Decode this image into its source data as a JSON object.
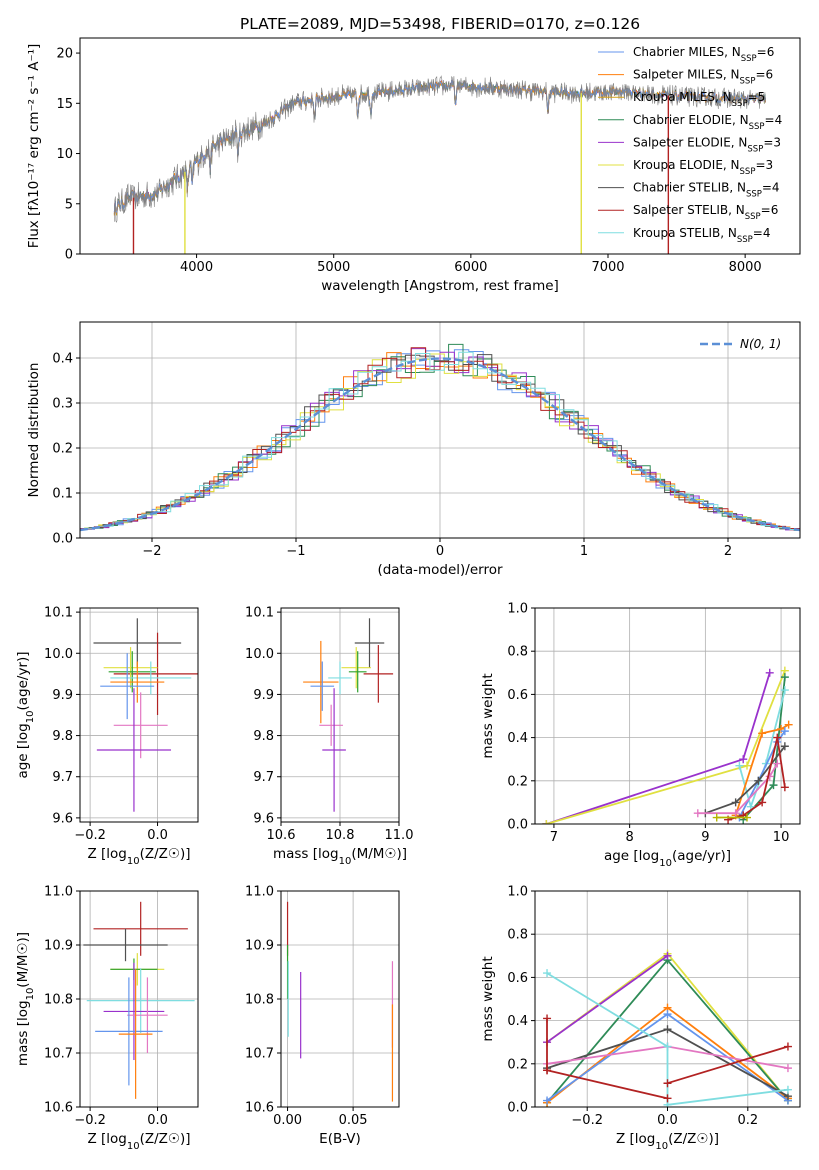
{
  "colors": {
    "Chabrier MILES": "#6495ed",
    "Salpeter MILES": "#ff7f0e",
    "Kroupa MILES": "#b0b0b0",
    "Chabrier ELODIE": "#2ca02c",
    "Salpeter ELODIE": "#9932cc",
    "Kroupa ELODIE": "#e0e040",
    "Chabrier STELIB": "#505050",
    "Salpeter STELIB": "#b22222",
    "Kroupa STELIB": "#7fdde0",
    "pink": "#e377c2",
    "gaussian": "#5b8fd6"
  },
  "chart_data": [
    {
      "id": "spectrum",
      "type": "line",
      "title": "PLATE=2089, MJD=53498, FIBERID=0170, z=0.126",
      "xlabel": "wavelength [Angstrom, rest frame]",
      "ylabel": "Flux [fλ10⁻¹⁷ erg cm⁻² s⁻¹ A⁻¹]",
      "xlim": [
        3150,
        8400
      ],
      "ylim": [
        0,
        21.5
      ],
      "xticks": [
        4000,
        5000,
        6000,
        7000,
        8000
      ],
      "yticks": [
        0,
        5,
        10,
        15,
        20
      ],
      "legend_loc": "upper right",
      "legend": [
        {
          "label": "Chabrier MILES, N",
          "sub": "SSP",
          "tail": "=6",
          "color": "#6495ed"
        },
        {
          "label": "Salpeter MILES, N",
          "sub": "SSP",
          "tail": "=6",
          "color": "#ff7f0e"
        },
        {
          "label": "Kroupa MILES, N",
          "sub": "SSP",
          "tail": "=5",
          "color": "#d4a017"
        },
        {
          "label": "Chabrier ELODIE, N",
          "sub": "SSP",
          "tail": "=4",
          "color": "#2e8b57"
        },
        {
          "label": "Salpeter ELODIE, N",
          "sub": "SSP",
          "tail": "=3",
          "color": "#9932cc"
        },
        {
          "label": "Kroupa ELODIE, N",
          "sub": "SSP",
          "tail": "=3",
          "color": "#e0e040"
        },
        {
          "label": "Chabrier STELIB, N",
          "sub": "SSP",
          "tail": "=4",
          "color": "#505050"
        },
        {
          "label": "Salpeter STELIB, N",
          "sub": "SSP",
          "tail": "=6",
          "color": "#b22222"
        },
        {
          "label": "Kroupa STELIB, N",
          "sub": "SSP",
          "tail": "=4",
          "color": "#7fdde0"
        }
      ],
      "continuum": [
        [
          3400,
          4.5
        ],
        [
          3500,
          5.5
        ],
        [
          3700,
          6.0
        ],
        [
          3900,
          8.0
        ],
        [
          4100,
          10.5
        ],
        [
          4300,
          12.0
        ],
        [
          4500,
          13.0
        ],
        [
          4700,
          15.0
        ],
        [
          4900,
          15.5
        ],
        [
          5100,
          15.8
        ],
        [
          5300,
          16.0
        ],
        [
          5600,
          16.5
        ],
        [
          5900,
          16.8
        ],
        [
          6200,
          16.5
        ],
        [
          6500,
          16.2
        ],
        [
          6800,
          16.0
        ],
        [
          7100,
          16.2
        ],
        [
          7400,
          15.8
        ],
        [
          7700,
          15.6
        ],
        [
          8000,
          15.4
        ],
        [
          8150,
          15.4
        ]
      ],
      "dropouts": [
        {
          "x": 3540,
          "color": "#b22222"
        },
        {
          "x": 3915,
          "color": "#e0e040"
        },
        {
          "x": 6805,
          "color": "#e0e040"
        },
        {
          "x": 7440,
          "color": "#b22222"
        }
      ]
    },
    {
      "id": "residuals",
      "type": "histogram",
      "xlabel": "(data-model)/error",
      "ylabel": "Normed distribution",
      "xlim": [
        -2.5,
        2.5
      ],
      "ylim": [
        0,
        0.48
      ],
      "xticks": [
        -2,
        -1,
        0,
        1,
        2
      ],
      "yticks": [
        0.0,
        0.1,
        0.2,
        0.3,
        0.4
      ],
      "grid": true,
      "legend_loc": "upper right",
      "legend_label": "N(0, 1)",
      "bin_width": 0.1,
      "series_colors": [
        "#6495ed",
        "#ff7f0e",
        "#2e8b57",
        "#9932cc",
        "#e0e040",
        "#505050",
        "#b22222",
        "#7fdde0"
      ]
    },
    {
      "id": "age-vs-Z",
      "type": "errorbar",
      "xlabel": "Z [log10(Z/Z☉)]",
      "ylabel": "age  [log10(age/yr)]",
      "xlim": [
        -0.23,
        0.12
      ],
      "ylim": [
        9.59,
        10.11
      ],
      "xticks": [
        -0.2,
        0.0
      ],
      "yticks": [
        9.6,
        9.7,
        9.8,
        9.9,
        10.0,
        10.1
      ],
      "grid": true,
      "points": [
        {
          "color": "#505050",
          "x": -0.06,
          "xerr": 0.13,
          "y": 10.025,
          "yerr": 0.06
        },
        {
          "color": "#b22222",
          "x": 0.0,
          "xerr": 0.13,
          "y": 9.95,
          "yerr": 0.1
        },
        {
          "color": "#e0e040",
          "x": -0.08,
          "xerr": 0.08,
          "y": 9.965,
          "yerr": 0.05
        },
        {
          "color": "#2ca02c",
          "x": -0.075,
          "xerr": 0.07,
          "y": 9.955,
          "yerr": 0.05
        },
        {
          "color": "#7fdde0",
          "x": -0.02,
          "xerr": 0.12,
          "y": 9.94,
          "yerr": 0.04
        },
        {
          "color": "#ff7f0e",
          "x": -0.06,
          "xerr": 0.08,
          "y": 9.93,
          "yerr": 0.05
        },
        {
          "color": "#6495ed",
          "x": -0.09,
          "xerr": 0.08,
          "y": 9.92,
          "yerr": 0.08
        },
        {
          "color": "#e377c2",
          "x": -0.05,
          "xerr": 0.08,
          "y": 9.825,
          "yerr": 0.08
        },
        {
          "color": "#9932cc",
          "x": -0.07,
          "xerr": 0.11,
          "y": 9.765,
          "yerr": 0.15
        }
      ]
    },
    {
      "id": "age-vs-mass",
      "type": "errorbar",
      "xlabel": "mass [log10(M/M☉)]",
      "ylabel": "",
      "xlim": [
        10.6,
        11.0
      ],
      "ylim": [
        9.59,
        10.11
      ],
      "xticks": [
        10.6,
        10.8,
        11.0
      ],
      "yticks": [
        9.6,
        9.7,
        9.8,
        9.9,
        10.0,
        10.1
      ],
      "grid": true,
      "points": [
        {
          "color": "#505050",
          "x": 10.9,
          "xerr": 0.05,
          "y": 10.025,
          "yerr": 0.06
        },
        {
          "color": "#b22222",
          "x": 10.93,
          "xerr": 0.05,
          "y": 9.95,
          "yerr": 0.07
        },
        {
          "color": "#e0e040",
          "x": 10.855,
          "xerr": 0.05,
          "y": 9.965,
          "yerr": 0.05
        },
        {
          "color": "#2ca02c",
          "x": 10.86,
          "xerr": 0.03,
          "y": 9.955,
          "yerr": 0.05
        },
        {
          "color": "#7fdde0",
          "x": 10.8,
          "xerr": 0.04,
          "y": 9.94,
          "yerr": 0.04
        },
        {
          "color": "#ff7f0e",
          "x": 10.735,
          "xerr": 0.06,
          "y": 9.93,
          "yerr": 0.1
        },
        {
          "color": "#6495ed",
          "x": 10.74,
          "xerr": 0.04,
          "y": 9.92,
          "yerr": 0.06
        },
        {
          "color": "#e377c2",
          "x": 10.77,
          "xerr": 0.04,
          "y": 9.825,
          "yerr": 0.05
        },
        {
          "color": "#9932cc",
          "x": 10.78,
          "xerr": 0.04,
          "y": 9.765,
          "yerr": 0.15
        }
      ]
    },
    {
      "id": "massweight-vs-age",
      "type": "line",
      "xlabel": "age  [log10(age/yr)]",
      "ylabel": "mass weight",
      "xlim": [
        6.75,
        10.25
      ],
      "ylim": [
        0,
        1.0
      ],
      "xticks": [
        7,
        8,
        9,
        10
      ],
      "yticks": [
        0.0,
        0.2,
        0.4,
        0.6,
        0.8,
        1.0
      ],
      "grid": true,
      "series": [
        {
          "color": "#9932cc",
          "x": [
            6.9,
            9.5,
            9.85
          ],
          "y": [
            0.0,
            0.3,
            0.7
          ]
        },
        {
          "color": "#e0e040",
          "x": [
            6.9,
            9.55,
            10.05
          ],
          "y": [
            0.0,
            0.27,
            0.71
          ]
        },
        {
          "color": "#2e8b57",
          "x": [
            9.5,
            9.9,
            10.05
          ],
          "y": [
            0.02,
            0.18,
            0.68
          ]
        },
        {
          "color": "#7fdde0",
          "x": [
            9.45,
            9.6,
            9.8,
            10.05
          ],
          "y": [
            0.27,
            0.08,
            0.28,
            0.62
          ]
        },
        {
          "color": "#ff7f0e",
          "x": [
            9.4,
            9.75,
            10.0,
            10.1
          ],
          "y": [
            0.04,
            0.42,
            0.44,
            0.46
          ]
        },
        {
          "color": "#6495ed",
          "x": [
            9.45,
            9.7,
            9.95,
            10.05
          ],
          "y": [
            0.03,
            0.2,
            0.38,
            0.43
          ]
        },
        {
          "color": "#505050",
          "x": [
            9.0,
            9.4,
            9.7,
            10.05
          ],
          "y": [
            0.05,
            0.1,
            0.2,
            0.36
          ]
        },
        {
          "color": "#e377c2",
          "x": [
            8.9,
            9.4,
            9.85,
            9.95
          ],
          "y": [
            0.05,
            0.05,
            0.22,
            0.28
          ]
        },
        {
          "color": "#b22222",
          "x": [
            9.3,
            9.5,
            9.75,
            9.95,
            10.05
          ],
          "y": [
            0.02,
            0.04,
            0.1,
            0.4,
            0.17
          ]
        },
        {
          "color": "#b5b500",
          "x": [
            9.15,
            9.55
          ],
          "y": [
            0.03,
            0.03
          ]
        }
      ]
    },
    {
      "id": "mass-vs-Z",
      "type": "errorbar",
      "xlabel": "Z [log10(Z/Z☉)]",
      "ylabel": "mass [log10(M/M☉)]",
      "xlim": [
        -0.23,
        0.12
      ],
      "ylim": [
        10.6,
        11.0
      ],
      "xticks": [
        -0.2,
        0.0
      ],
      "yticks": [
        10.6,
        10.7,
        10.8,
        10.9,
        11.0
      ],
      "grid": true,
      "points": [
        {
          "color": "#b22222",
          "x": -0.05,
          "xerr": 0.14,
          "y": 10.93,
          "yerr": 0.05
        },
        {
          "color": "#505050",
          "x": -0.095,
          "xerr": 0.125,
          "y": 10.9,
          "yerr": 0.03
        },
        {
          "color": "#e0e040",
          "x": -0.06,
          "xerr": 0.08,
          "y": 10.855,
          "yerr": 0.03
        },
        {
          "color": "#2ca02c",
          "x": -0.07,
          "xerr": 0.07,
          "y": 10.855,
          "yerr": 0.02
        },
        {
          "color": "#7fdde0",
          "x": -0.05,
          "xerr": 0.16,
          "y": 10.797,
          "yerr": 0.06
        },
        {
          "color": "#9932cc",
          "x": -0.07,
          "xerr": 0.09,
          "y": 10.777,
          "yerr": 0.09
        },
        {
          "color": "#e377c2",
          "x": -0.03,
          "xerr": 0.06,
          "y": 10.77,
          "yerr": 0.07
        },
        {
          "color": "#6495ed",
          "x": -0.085,
          "xerr": 0.1,
          "y": 10.74,
          "yerr": 0.1
        },
        {
          "color": "#ff7f0e",
          "x": -0.065,
          "xerr": 0.05,
          "y": 10.735,
          "yerr": 0.12
        }
      ]
    },
    {
      "id": "mass-vs-ebv",
      "type": "errorbar",
      "xlabel": "E(B-V)",
      "ylabel": "",
      "xlim": [
        -0.005,
        0.085
      ],
      "ylim": [
        10.6,
        11.0
      ],
      "xticks": [
        0.0,
        0.05
      ],
      "yticks": [
        10.6,
        10.7,
        10.8,
        10.9,
        11.0
      ],
      "grid": true,
      "points": [
        {
          "color": "#b22222",
          "x": 0.0,
          "xerr": 0,
          "y": 10.93,
          "yerr": 0.05
        },
        {
          "color": "#2ca02c",
          "x": 0.0,
          "xerr": 0,
          "y": 10.85,
          "yerr": 0.05
        },
        {
          "color": "#7fdde0",
          "x": 0.0005,
          "xerr": 0,
          "y": 10.8,
          "yerr": 0.07
        },
        {
          "color": "#9932cc",
          "x": 0.01,
          "xerr": 0,
          "y": 10.77,
          "yerr": 0.08
        },
        {
          "color": "#e377c2",
          "x": 0.08,
          "xerr": 0,
          "y": 10.79,
          "yerr": 0.08
        },
        {
          "color": "#ff7f0e",
          "x": 0.08,
          "xerr": 0,
          "y": 10.7,
          "yerr": 0.09
        }
      ]
    },
    {
      "id": "massweight-vs-Z",
      "type": "line",
      "xlabel": "Z [log10(Z/Z☉)]",
      "ylabel": "mass weight",
      "xlim": [
        -0.33,
        0.33
      ],
      "ylim": [
        0,
        1.0
      ],
      "xticks": [
        -0.2,
        0.0,
        0.2
      ],
      "yticks": [
        0.0,
        0.2,
        0.4,
        0.6,
        0.8,
        1.0
      ],
      "grid": true,
      "series": [
        {
          "color": "#e0e040",
          "x": [
            -0.3,
            0.0,
            0.3
          ],
          "y": [
            0.3,
            0.71,
            0.03
          ]
        },
        {
          "color": "#2e8b57",
          "x": [
            -0.3,
            0.0,
            0.3
          ],
          "y": [
            0.02,
            0.68,
            0.03
          ]
        },
        {
          "color": "#9932cc",
          "x": [
            -0.3,
            0.0
          ],
          "y": [
            0.3,
            0.7
          ]
        },
        {
          "color": "#ff7f0e",
          "x": [
            -0.3,
            0.0,
            0.3
          ],
          "y": [
            0.02,
            0.46,
            0.04
          ]
        },
        {
          "color": "#6495ed",
          "x": [
            -0.3,
            0.0,
            0.3
          ],
          "y": [
            0.03,
            0.43,
            0.03
          ]
        },
        {
          "color": "#505050",
          "x": [
            -0.3,
            0.0,
            0.3
          ],
          "y": [
            0.18,
            0.36,
            0.05
          ]
        },
        {
          "color": "#e377c2",
          "x": [
            -0.3,
            0.0,
            0.3
          ],
          "y": [
            0.2,
            0.28,
            0.18
          ]
        },
        {
          "color": "#7fdde0",
          "x": [
            -0.3,
            0.0,
            0.0,
            0.3
          ],
          "y": [
            0.62,
            0.28,
            0.01,
            0.08
          ]
        },
        {
          "color": "#b22222",
          "x": [
            -0.3,
            0.0
          ],
          "y": [
            0.17,
            0.04
          ]
        },
        {
          "color": "#b22222",
          "x": [
            0.0,
            0.3
          ],
          "y": [
            0.11,
            0.28
          ]
        },
        {
          "color": "#b22222",
          "x": [
            -0.3,
            -0.3
          ],
          "y": [
            0.17,
            0.41
          ]
        }
      ]
    }
  ]
}
